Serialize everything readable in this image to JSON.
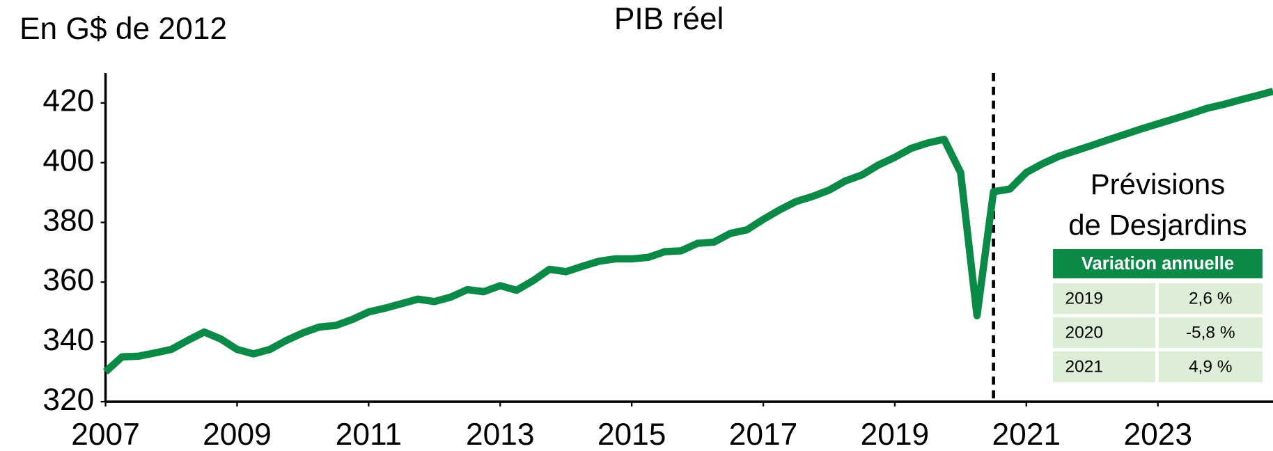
{
  "chart_data": {
    "type": "line",
    "title": "PIB réel",
    "y_label": "En G$ de 2012",
    "color": "#0b8a47",
    "x": [
      2007.0,
      2007.25,
      2007.5,
      2007.75,
      2008.0,
      2008.25,
      2008.5,
      2008.75,
      2009.0,
      2009.25,
      2009.5,
      2009.75,
      2010.0,
      2010.25,
      2010.5,
      2010.75,
      2011.0,
      2011.25,
      2011.5,
      2011.75,
      2012.0,
      2012.25,
      2012.5,
      2012.75,
      2013.0,
      2013.25,
      2013.5,
      2013.75,
      2014.0,
      2014.25,
      2014.5,
      2014.75,
      2015.0,
      2015.25,
      2015.5,
      2015.75,
      2016.0,
      2016.25,
      2016.5,
      2016.75,
      2017.0,
      2017.25,
      2017.5,
      2017.75,
      2018.0,
      2018.25,
      2018.5,
      2018.75,
      2019.0,
      2019.25,
      2019.5,
      2019.75,
      2020.0,
      2020.25,
      2020.5,
      2020.75,
      2021.0,
      2021.25,
      2021.5,
      2021.75,
      2022.0,
      2022.25,
      2022.5,
      2022.75,
      2023.0,
      2023.25,
      2023.5,
      2023.75,
      2024.0,
      2024.25,
      2024.5,
      2024.75
    ],
    "values": [
      330,
      335,
      335.2,
      336.3,
      337.5,
      340.5,
      343.3,
      341,
      337.5,
      336,
      337.5,
      340.5,
      343,
      345,
      345.5,
      347.5,
      350,
      351.3,
      352.8,
      354.3,
      353.5,
      355,
      357.5,
      356.8,
      358.8,
      357.3,
      360.5,
      364.3,
      363.5,
      365.3,
      367,
      367.8,
      367.8,
      368.3,
      370.2,
      370.5,
      373,
      373.4,
      376.3,
      377.5,
      381,
      384.2,
      387,
      388.7,
      390.8,
      393.9,
      395.9,
      399.2,
      401.8,
      404.8,
      406.6,
      407.8,
      396.7,
      348.8,
      390.3,
      391.2,
      396.7,
      399.7,
      402.2,
      404,
      405.8,
      407.7,
      409.5,
      411.3,
      413,
      414.7,
      416.4,
      418.2,
      419.5,
      421,
      422.4,
      423.9
    ],
    "xlim": [
      2007,
      2024.75
    ],
    "ylim": [
      320,
      430
    ],
    "xticks": [
      2007,
      2009,
      2011,
      2013,
      2015,
      2017,
      2019,
      2021,
      2023
    ],
    "yticks": [
      320,
      340,
      360,
      380,
      400,
      420
    ],
    "vline": 2020.5,
    "forecast_box": {
      "title_lines": [
        "Prévisions",
        "de Desjardins"
      ],
      "header": "Variation annuelle",
      "rows": [
        [
          "2019",
          "2,6 %"
        ],
        [
          "2020",
          "-5,8 %"
        ],
        [
          "2021",
          "4,9 %"
        ]
      ]
    }
  }
}
